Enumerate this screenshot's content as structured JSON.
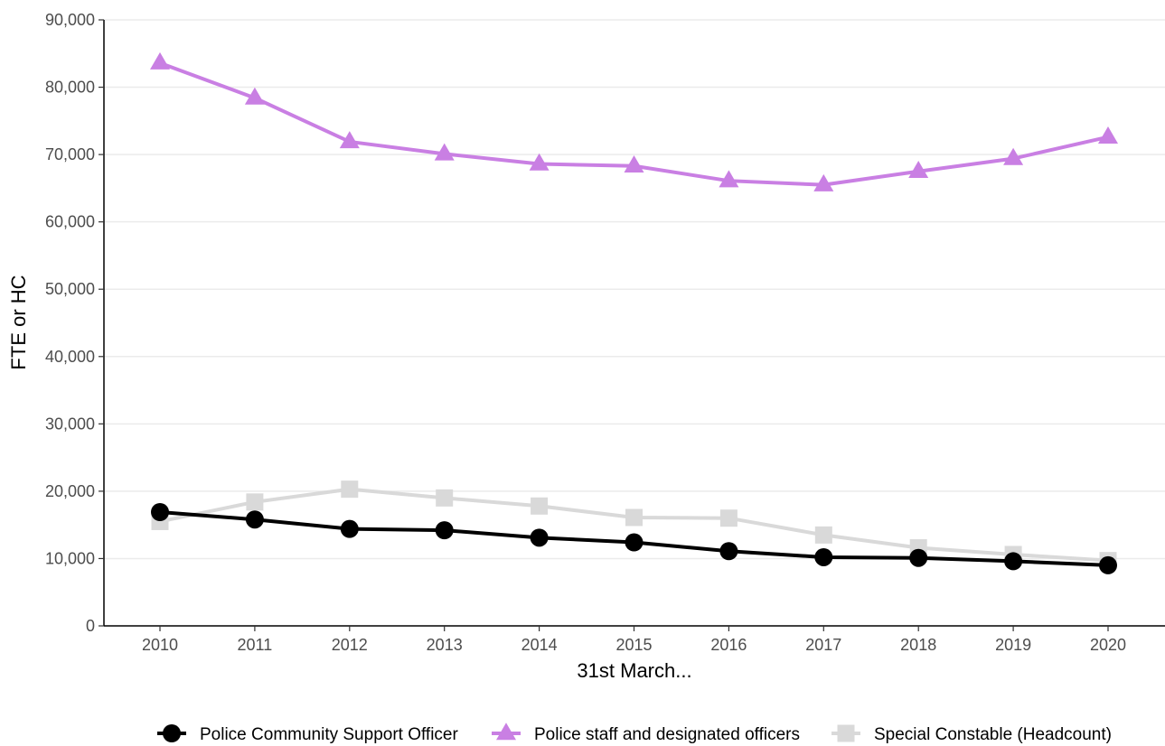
{
  "chart_data": {
    "type": "line",
    "title": "",
    "xlabel": "31st March...",
    "ylabel": "FTE or HC",
    "x": [
      "2010",
      "2011",
      "2012",
      "2013",
      "2014",
      "2015",
      "2016",
      "2017",
      "2018",
      "2019",
      "2020"
    ],
    "ylim": [
      0,
      90000
    ],
    "yticks": [
      0,
      10000,
      20000,
      30000,
      40000,
      50000,
      60000,
      70000,
      80000,
      90000
    ],
    "ytick_labels": [
      "0",
      "10,000",
      "20,000",
      "30,000",
      "40,000",
      "50,000",
      "60,000",
      "70,000",
      "80,000",
      "90,000"
    ],
    "grid": "horizontal major",
    "legend": {
      "placement": "bottom"
    },
    "series": [
      {
        "name": "Police Community Support Officer",
        "color": "#000000",
        "marker": "circle",
        "values": [
          16900,
          15800,
          14400,
          14200,
          13100,
          12400,
          11100,
          10200,
          10100,
          9600,
          9000
        ]
      },
      {
        "name": "Police staff and designated officers",
        "color": "#c97fe3",
        "marker": "triangle",
        "values": [
          83600,
          78400,
          71900,
          70100,
          68600,
          68300,
          66100,
          65500,
          67500,
          69400,
          72600
        ]
      },
      {
        "name": "Special Constable (Headcount)",
        "color": "#d9d9d9",
        "marker": "square",
        "values": [
          15500,
          18400,
          20300,
          19000,
          17800,
          16100,
          16000,
          13500,
          11600,
          10600,
          9700
        ]
      }
    ]
  }
}
